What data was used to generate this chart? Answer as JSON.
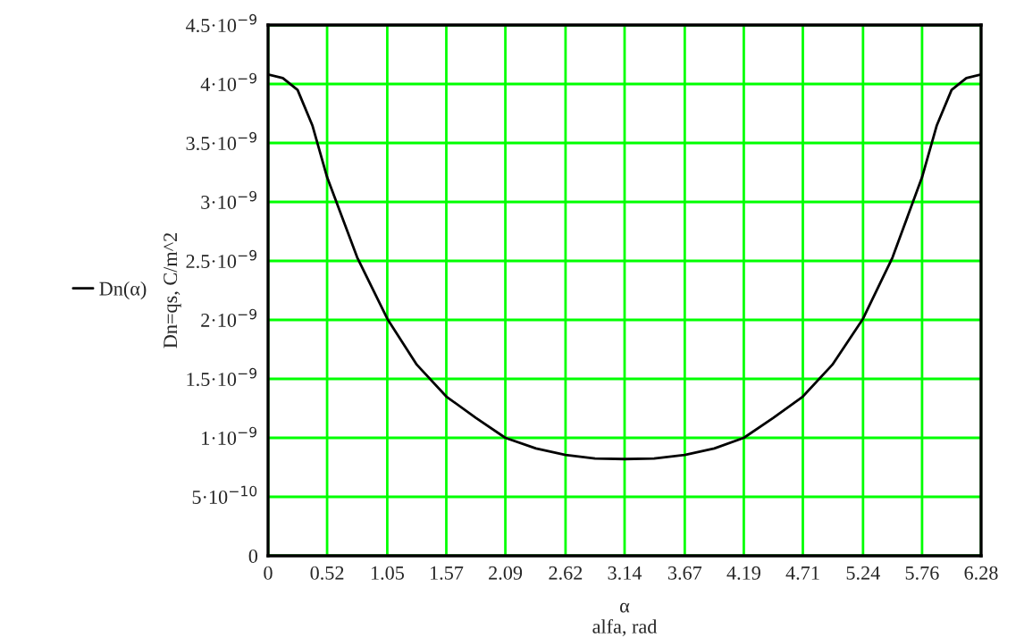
{
  "chart_data": {
    "type": "line",
    "xlabel": "α\nalfa, rad",
    "ylabel": "Dn=qs, C/m^2",
    "series": [
      {
        "name": "Dn(α)",
        "color": "#000000",
        "x": [
          0,
          0.13,
          0.26,
          0.39,
          0.52,
          0.785,
          1.05,
          1.31,
          1.57,
          1.83,
          2.09,
          2.36,
          2.62,
          2.88,
          3.14,
          3.4,
          3.67,
          3.93,
          4.19,
          4.45,
          4.71,
          4.97,
          5.24,
          5.5,
          5.76,
          5.89,
          6.02,
          6.15,
          6.28
        ],
        "values": [
          4.08e-09,
          4.05e-09,
          3.95e-09,
          3.65e-09,
          3.21e-09,
          2.53e-09,
          2.01e-09,
          1.62e-09,
          1.35e-09,
          1.17e-09,
          1e-09,
          9.1e-10,
          8.55e-10,
          8.25e-10,
          8.2e-10,
          8.25e-10,
          8.55e-10,
          9.1e-10,
          1e-09,
          1.17e-09,
          1.35e-09,
          1.62e-09,
          2.01e-09,
          2.53e-09,
          3.21e-09,
          3.65e-09,
          3.95e-09,
          4.05e-09,
          4.08e-09
        ]
      }
    ],
    "xlim": [
      0,
      6.28
    ],
    "ylim": [
      0,
      4.5e-09
    ],
    "xticks": [
      0,
      0.52,
      1.05,
      1.57,
      2.09,
      2.62,
      3.14,
      3.67,
      4.19,
      4.71,
      5.24,
      5.76,
      6.28
    ],
    "yticks": [
      0,
      {
        "value": 5e-10,
        "label": "5·10$^{−10}$"
      },
      {
        "value": 1e-09,
        "label": "1·10$^{−9}$"
      },
      {
        "value": 1.5e-09,
        "label": "1.5·10$^{−9}$"
      },
      {
        "value": 2e-09,
        "label": "2·10$^{−9}$"
      },
      {
        "value": 2.5e-09,
        "label": "2.5·10$^{−9}$"
      },
      {
        "value": 3e-09,
        "label": "3·10$^{−9}$"
      },
      {
        "value": 3.5e-09,
        "label": "3.5·10$^{−9}$"
      },
      {
        "value": 4e-09,
        "label": "4·10$^{−9}$"
      },
      {
        "value": 4.5e-09,
        "label": "4.5·10$^{−9}$"
      }
    ],
    "grid": true,
    "legend": "left",
    "line_style": "solid",
    "marker": "none"
  }
}
